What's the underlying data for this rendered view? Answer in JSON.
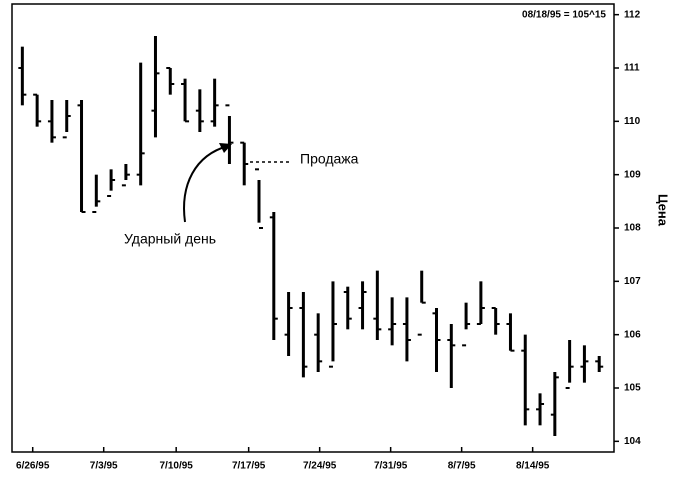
{
  "chart_data": {
    "type": "ohlc",
    "title": "08/18/95 = 105^15",
    "y_label": "Цена",
    "annotations": [
      "Продажа",
      "Ударный день"
    ],
    "color": "#000000",
    "x": [
      0,
      1,
      2,
      3,
      4,
      5,
      6,
      7,
      8,
      9,
      10,
      11,
      12,
      13,
      14,
      15,
      16,
      17,
      18,
      19,
      20,
      21,
      22,
      23,
      24,
      25,
      26,
      27,
      28,
      29,
      30,
      31,
      32,
      33,
      34,
      35,
      36,
      37,
      38,
      39
    ],
    "series": [
      {
        "name": "open",
        "values": [
          111.0,
          110.5,
          110.0,
          109.7,
          110.3,
          108.3,
          108.6,
          108.8,
          109.0,
          110.2,
          111.0,
          110.7,
          110.2,
          110.0,
          110.3,
          109.6,
          109.1,
          108.2,
          106.0,
          106.5,
          106.0,
          105.4,
          106.8,
          106.5,
          106.3,
          106.1,
          106.2,
          106.0,
          106.4,
          105.9,
          105.8,
          106.2,
          106.5,
          106.2,
          105.7,
          104.6,
          104.5,
          105.0,
          105.4,
          105.5
        ]
      },
      {
        "name": "high",
        "values": [
          111.4,
          110.5,
          110.4,
          110.4,
          110.4,
          109.0,
          109.1,
          109.2,
          111.1,
          111.6,
          111.0,
          110.8,
          110.6,
          110.8,
          110.1,
          109.6,
          108.9,
          108.3,
          106.8,
          106.8,
          106.4,
          107.0,
          106.9,
          107.0,
          107.2,
          106.7,
          106.7,
          107.2,
          106.5,
          106.2,
          106.6,
          107.0,
          106.5,
          106.4,
          106.0,
          104.9,
          105.3,
          105.9,
          105.8,
          105.6
        ]
      },
      {
        "name": "low",
        "values": [
          110.3,
          109.9,
          109.6,
          109.8,
          108.3,
          108.4,
          108.7,
          108.9,
          108.8,
          109.7,
          110.5,
          110.0,
          109.8,
          109.9,
          109.2,
          108.8,
          108.1,
          105.9,
          105.6,
          105.2,
          105.3,
          105.5,
          106.1,
          106.1,
          105.9,
          105.8,
          105.5,
          106.6,
          105.3,
          105.0,
          106.1,
          106.2,
          106.0,
          105.7,
          104.3,
          104.3,
          104.1,
          105.1,
          105.1,
          105.3
        ]
      },
      {
        "name": "close",
        "values": [
          110.5,
          110.0,
          109.7,
          110.1,
          108.3,
          108.5,
          108.9,
          109.0,
          109.4,
          110.9,
          110.7,
          110.0,
          110.0,
          110.3,
          109.6,
          109.2,
          108.0,
          106.3,
          106.5,
          105.4,
          105.5,
          106.2,
          106.3,
          106.8,
          106.1,
          106.2,
          105.9,
          106.6,
          105.9,
          105.8,
          106.2,
          106.5,
          106.2,
          105.7,
          104.6,
          104.7,
          105.2,
          105.4,
          105.5,
          105.4
        ]
      }
    ],
    "xlim": [
      -0.7,
      40
    ],
    "xticks": [
      {
        "value": 0.7,
        "label": "6/26/95"
      },
      {
        "value": 5.5,
        "label": "7/3/95"
      },
      {
        "value": 10.4,
        "label": "7/10/95"
      },
      {
        "value": 15.3,
        "label": "7/17/95"
      },
      {
        "value": 20.1,
        "label": "7/24/95"
      },
      {
        "value": 24.9,
        "label": "7/31/95"
      },
      {
        "value": 29.7,
        "label": "8/7/95"
      },
      {
        "value": 34.5,
        "label": "8/14/95"
      }
    ],
    "ylim": [
      103.8,
      112.2
    ],
    "yticks": [
      104,
      105,
      106,
      107,
      108,
      109,
      110,
      111,
      112
    ]
  }
}
